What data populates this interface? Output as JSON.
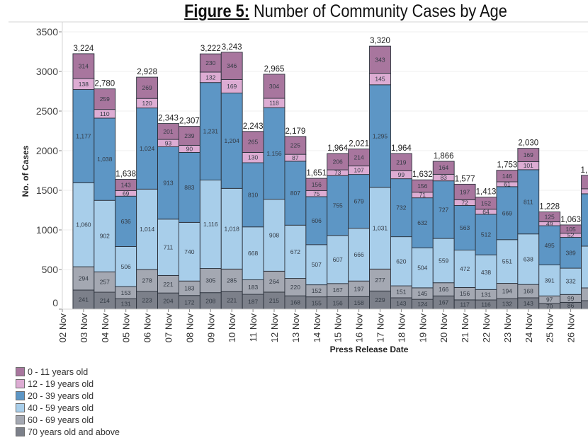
{
  "figure": {
    "title_prefix": "Figure 5:",
    "title_text": " Number of Community Cases by Age"
  },
  "chart_data": {
    "type": "bar",
    "stacked": true,
    "title": "Figure 5: Number of Community Cases by Age",
    "xlabel": "Press Release Date",
    "ylabel": "No. of Cases",
    "ylim": [
      0,
      3500
    ],
    "yticks": [
      0,
      500,
      1000,
      1500,
      2000,
      2500,
      3000,
      3500
    ],
    "grid": true,
    "legend_position": "bottom-left",
    "categories": [
      "02 Nov",
      "03 Nov",
      "04 Nov",
      "05 Nov",
      "06 Nov",
      "07 Nov",
      "08 Nov",
      "09 Nov",
      "10 Nov",
      "11 Nov",
      "12 Nov",
      "13 Nov",
      "14 Nov",
      "15 Nov",
      "16 Nov",
      "17 Nov",
      "18 Nov",
      "19 Nov",
      "20 Nov",
      "21 Nov",
      "22 Nov",
      "23 Nov",
      "24 Nov",
      "25 Nov",
      "26 Nov"
    ],
    "series": [
      {
        "name": "0 - 11 years old",
        "color": "#a8769e",
        "values": [
          null,
          314,
          259,
          143,
          269,
          201,
          239,
          230,
          346,
          265,
          304,
          225,
          156,
          206,
          214,
          343,
          219,
          156,
          164,
          197,
          152,
          146,
          169,
          125,
          105
        ]
      },
      {
        "name": "12 - 19 years old",
        "color": "#ddacd3",
        "values": [
          null,
          138,
          110,
          69,
          120,
          93,
          90,
          132,
          169,
          130,
          118,
          87,
          75,
          73,
          107,
          145,
          99,
          71,
          83,
          72,
          64,
          61,
          101,
          49,
          52
        ]
      },
      {
        "name": "20 - 39 years old",
        "color": "#5d96c5",
        "values": [
          null,
          1177,
          1038,
          636,
          1024,
          913,
          883,
          1231,
          1204,
          810,
          1156,
          807,
          606,
          755,
          679,
          1295,
          732,
          632,
          727,
          563,
          512,
          669,
          811,
          495,
          389
        ]
      },
      {
        "name": "40 - 59 years old",
        "color": "#a8ceea",
        "values": [
          null,
          1060,
          902,
          506,
          1014,
          711,
          740,
          1116,
          1018,
          668,
          908,
          672,
          507,
          607,
          666,
          1031,
          620,
          504,
          559,
          472,
          438,
          551,
          638,
          391,
          332
        ]
      },
      {
        "name": "60 - 69 years old",
        "color": "#a4a8b2",
        "values": [
          null,
          294,
          257,
          153,
          278,
          221,
          183,
          305,
          285,
          183,
          264,
          220,
          152,
          167,
          197,
          277,
          151,
          145,
          166,
          156,
          131,
          194,
          168,
          97,
          99
        ]
      },
      {
        "name": "70 years old and above",
        "color": "#7c808a",
        "values": [
          null,
          241,
          214,
          131,
          223,
          204,
          172,
          208,
          221,
          187,
          215,
          168,
          155,
          156,
          158,
          229,
          143,
          124,
          167,
          117,
          116,
          132,
          143,
          70,
          86
        ]
      }
    ],
    "totals": [
      null,
      3224,
      2780,
      1638,
      2928,
      2343,
      2307,
      3222,
      3243,
      2243,
      2965,
      2179,
      1651,
      1964,
      2021,
      3320,
      1964,
      1632,
      1866,
      1577,
      1413,
      1753,
      2030,
      1228,
      1063
    ],
    "cut_off_bar": {
      "total_label_visible": "1,",
      "estimated_values": [
        170,
        63,
        661,
        527,
        161,
        107
      ]
    }
  }
}
